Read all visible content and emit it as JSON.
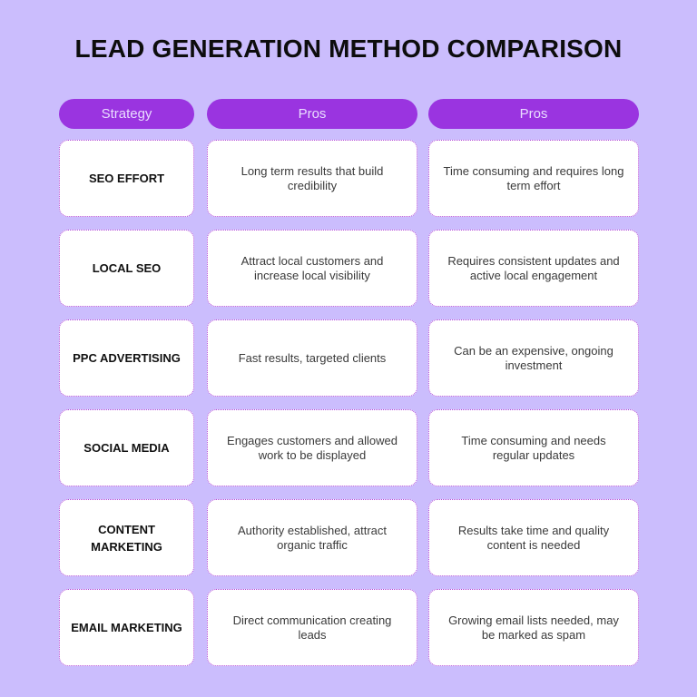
{
  "title": "LEAD GENERATION METHOD COMPARISON",
  "headers": [
    "Strategy",
    "Pros",
    "Pros"
  ],
  "rows": [
    {
      "strategy": "SEO EFFORT",
      "pros": "Long term results that build credibility",
      "cons": "Time consuming and requires long term effort"
    },
    {
      "strategy": "LOCAL SEO",
      "pros": "Attract local customers and increase local visibility",
      "cons": "Requires consistent updates and active local engagement"
    },
    {
      "strategy": "PPC ADVERTISING",
      "pros": "Fast results, targeted clients",
      "cons": "Can be an expensive, ongoing investment"
    },
    {
      "strategy": "SOCIAL MEDIA",
      "pros": "Engages customers and allowed work to be displayed",
      "cons": "Time consuming and needs regular updates"
    },
    {
      "strategy": "CONTENT MARKETING",
      "pros": "Authority established, attract organic traffic",
      "cons": "Results take time and quality content is needed"
    },
    {
      "strategy": "EMAIL MARKETING",
      "pros": "Direct communication creating leads",
      "cons": "Growing email lists needed, may be marked as spam"
    }
  ],
  "colors": {
    "background": "#cbbdfd",
    "header_pill": "#9a34e0",
    "header_text": "#e9dcff",
    "card": "#ffffff",
    "card_border": "#b046d6"
  }
}
